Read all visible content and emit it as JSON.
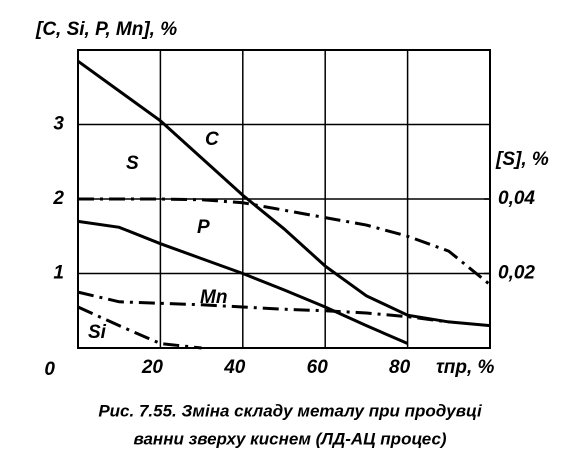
{
  "chart_data": {
    "type": "line",
    "y_label": "[C, Si, P, Mn], %",
    "y2_label": "[S], %",
    "x_label": "τпр, %",
    "caption": [
      "Рис. 7.55. Зміна складу металу при продувці",
      "ванни зверху киснем (ЛД-АЦ процес)"
    ],
    "x": [
      0,
      10,
      20,
      30,
      40,
      50,
      60,
      70,
      80,
      90,
      100
    ],
    "series": [
      {
        "name": "C",
        "color": "#000000",
        "style": "solid",
        "values": [
          3.85,
          3.45,
          3.05,
          2.55,
          2.05,
          1.6,
          1.1,
          0.7,
          0.44,
          0.35,
          0.3
        ]
      },
      {
        "name": "S",
        "color": "#000000",
        "style": "dash-dot",
        "axis": "y2",
        "values": [
          0.04,
          0.04,
          0.04,
          0.0398,
          0.039,
          0.037,
          0.035,
          0.033,
          0.03,
          0.026,
          0.017
        ]
      },
      {
        "name": "P",
        "color": "#000000",
        "style": "solid",
        "values": [
          1.7,
          1.62,
          1.4,
          1.2,
          1.0,
          0.78,
          0.55,
          0.3,
          0.06,
          null,
          null
        ]
      },
      {
        "name": "Mn",
        "color": "#000000",
        "style": "dash-dot",
        "values": [
          0.75,
          0.62,
          0.6,
          0.58,
          0.55,
          0.52,
          0.5,
          0.47,
          0.42,
          0.35,
          null
        ]
      },
      {
        "name": "Si",
        "color": "#000000",
        "style": "dash-dot",
        "values": [
          0.55,
          0.3,
          0.06,
          0,
          null,
          null,
          null,
          null,
          null,
          null,
          null
        ]
      }
    ],
    "xlim": [
      0,
      100
    ],
    "xticks": [
      20,
      40,
      60,
      80
    ],
    "ylim": [
      0,
      4
    ],
    "yticks": [
      0,
      1,
      2,
      3
    ],
    "y2lim": [
      0,
      0.08
    ],
    "y2ticks": [
      {
        "value": 0.02,
        "label": "0,02"
      },
      {
        "value": 0.04,
        "label": "0,04"
      }
    ],
    "grid": true
  }
}
